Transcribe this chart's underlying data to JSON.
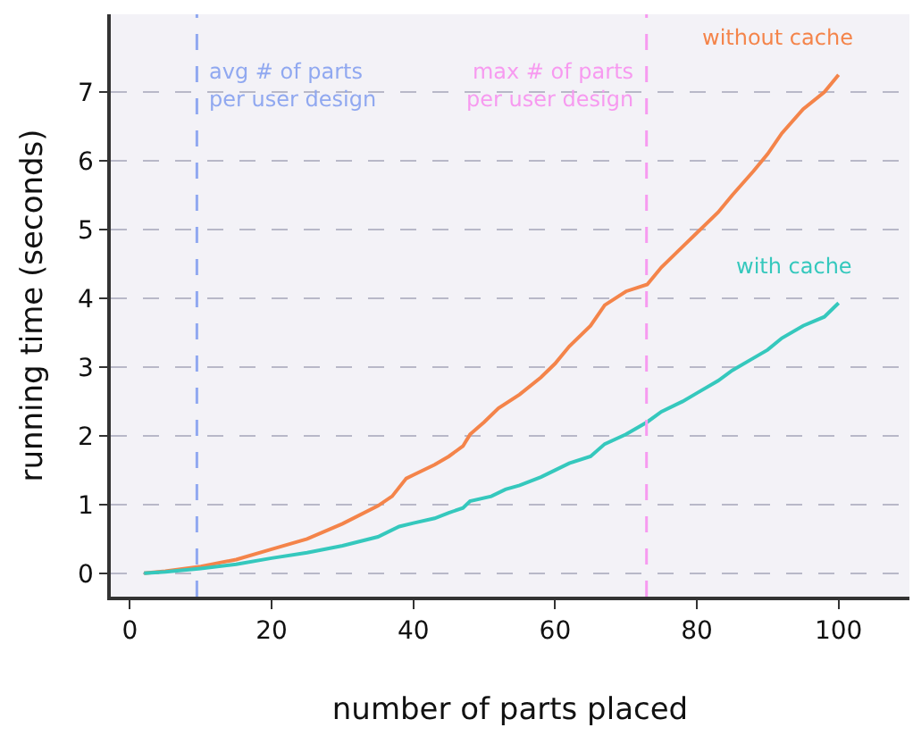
{
  "chart_data": {
    "type": "line",
    "xlabel": "number of parts placed",
    "ylabel": "running time (seconds)",
    "xlim": [
      -2.7,
      110
    ],
    "ylim": [
      -0.34,
      8.13
    ],
    "xticks": [
      0,
      20,
      40,
      60,
      80,
      100
    ],
    "yticks": [
      0,
      1,
      2,
      3,
      4,
      5,
      6,
      7
    ],
    "grid": "y",
    "legend": false,
    "series": [
      {
        "name": "without cache",
        "color": "#f4844a",
        "x": [
          2,
          5,
          10,
          15,
          20,
          25,
          30,
          35,
          37,
          39,
          40,
          43,
          45,
          47,
          48,
          50,
          52,
          55,
          58,
          60,
          62,
          65,
          67,
          70,
          73,
          75,
          78,
          80,
          83,
          85,
          88,
          90,
          92,
          95,
          98,
          100
        ],
        "values": [
          0,
          0.03,
          0.1,
          0.2,
          0.35,
          0.5,
          0.72,
          0.98,
          1.12,
          1.38,
          1.43,
          1.58,
          1.7,
          1.85,
          2.02,
          2.2,
          2.4,
          2.6,
          2.85,
          3.05,
          3.3,
          3.6,
          3.9,
          4.1,
          4.2,
          4.45,
          4.75,
          4.95,
          5.25,
          5.5,
          5.85,
          6.1,
          6.4,
          6.75,
          7.0,
          7.25
        ]
      },
      {
        "name": "with cache",
        "color": "#35c8bd",
        "x": [
          2,
          5,
          10,
          15,
          20,
          25,
          30,
          35,
          38,
          40,
          43,
          45,
          47,
          48,
          51,
          53,
          55,
          58,
          60,
          62,
          65,
          67,
          70,
          73,
          75,
          78,
          80,
          83,
          85,
          88,
          90,
          92,
          95,
          98,
          100
        ],
        "values": [
          0,
          0.02,
          0.07,
          0.13,
          0.22,
          0.3,
          0.4,
          0.53,
          0.68,
          0.73,
          0.8,
          0.88,
          0.95,
          1.05,
          1.12,
          1.22,
          1.28,
          1.4,
          1.5,
          1.6,
          1.7,
          1.88,
          2.02,
          2.2,
          2.35,
          2.5,
          2.62,
          2.8,
          2.95,
          3.13,
          3.25,
          3.42,
          3.6,
          3.73,
          3.93
        ]
      }
    ],
    "ref_lines": [
      {
        "axis": "x",
        "value": 9.45,
        "label": "avg # of parts\nper user design",
        "color": "#90a8f0",
        "line_style": "dashed"
      },
      {
        "axis": "x",
        "value": 72.9,
        "label": "max # of parts\nper user design",
        "color": "#f79af0",
        "line_style": "dashed"
      }
    ]
  }
}
